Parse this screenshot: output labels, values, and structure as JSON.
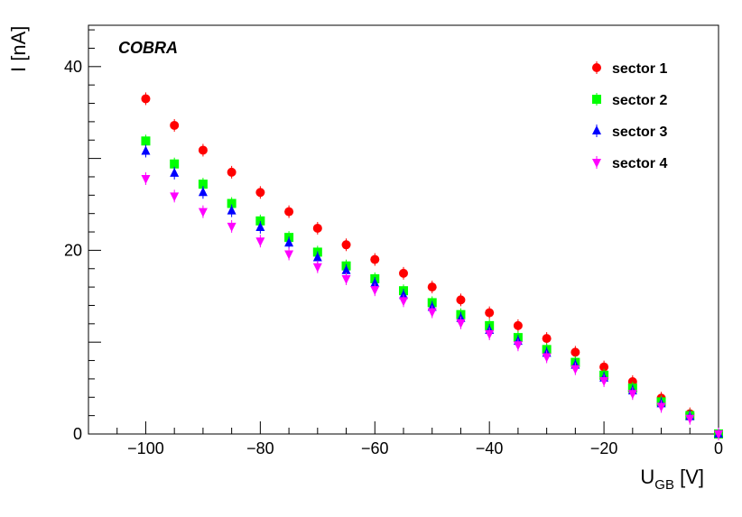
{
  "chart_data": {
    "type": "scatter",
    "title": "COBRA",
    "xlabel": {
      "main": "U",
      "sub": "GB",
      "unit": " [V]"
    },
    "ylabel": "I [nA]",
    "xlim": [
      -110,
      0
    ],
    "ylim": [
      0,
      44.5
    ],
    "x_ticks": [
      -100,
      -80,
      -60,
      -40,
      -20,
      0
    ],
    "x_tick_labels": [
      "−100",
      "−80",
      "−60",
      "−40",
      "−20",
      "0"
    ],
    "y_ticks": [
      0,
      20,
      40
    ],
    "y_tick_labels": [
      "0",
      "20",
      "40"
    ],
    "legend_position": "top-right",
    "x": [
      -100,
      -95,
      -90,
      -85,
      -80,
      -75,
      -70,
      -65,
      -60,
      -55,
      -50,
      -45,
      -40,
      -35,
      -30,
      -25,
      -20,
      -15,
      -10,
      -5,
      0
    ],
    "series": [
      {
        "name": "sector 1",
        "color": "#ff0000",
        "marker": "circle",
        "values": [
          36.5,
          33.6,
          30.9,
          28.5,
          26.3,
          24.2,
          22.4,
          20.6,
          19.0,
          17.5,
          16.0,
          14.6,
          13.2,
          11.8,
          10.4,
          8.9,
          7.3,
          5.7,
          3.9,
          2.2,
          0
        ]
      },
      {
        "name": "sector 2",
        "color": "#00ff00",
        "marker": "square",
        "values": [
          31.9,
          29.4,
          27.2,
          25.1,
          23.2,
          21.4,
          19.8,
          18.3,
          16.9,
          15.6,
          14.3,
          13.0,
          11.8,
          10.5,
          9.2,
          7.8,
          6.4,
          5.0,
          3.5,
          2.0,
          0
        ]
      },
      {
        "name": "sector 3",
        "color": "#0000ff",
        "marker": "triangle-up",
        "values": [
          30.8,
          28.4,
          26.3,
          24.3,
          22.5,
          20.8,
          19.2,
          17.8,
          16.4,
          15.1,
          13.8,
          12.6,
          11.3,
          10.1,
          8.8,
          7.5,
          6.1,
          4.7,
          3.3,
          1.9,
          0
        ]
      },
      {
        "name": "sector 4",
        "color": "#ff00ff",
        "marker": "triangle-down",
        "values": [
          27.8,
          25.9,
          24.2,
          22.6,
          21.0,
          19.6,
          18.2,
          16.9,
          15.7,
          14.5,
          13.3,
          12.1,
          10.9,
          9.7,
          8.4,
          7.1,
          5.8,
          4.4,
          3.0,
          1.7,
          0
        ]
      }
    ]
  }
}
